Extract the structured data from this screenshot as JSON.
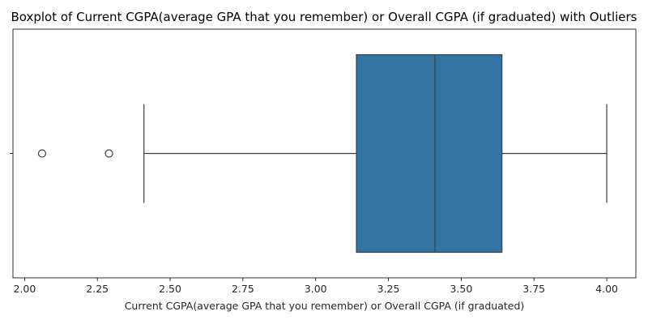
{
  "chart_data": {
    "type": "boxplot",
    "title": "Boxplot of Current CGPA(average GPA that you remember) or Overall CGPA (if graduated) with Outliers",
    "xlabel": "Current CGPA(average GPA that you remember) or Overall CGPA (if graduated)",
    "ylabel": "",
    "xlim": [
      1.96,
      4.1
    ],
    "xticks": [
      "2.00",
      "2.25",
      "2.50",
      "2.75",
      "3.00",
      "3.25",
      "3.50",
      "3.75",
      "4.00"
    ],
    "grid": false,
    "box": {
      "whisker_low": 2.41,
      "q1": 3.14,
      "median": 3.41,
      "q3": 3.64,
      "whisker_high": 4.0
    },
    "outliers": [
      2.06,
      2.29
    ],
    "colors": {
      "box_fill": "#3274a1",
      "line": "#3f3f3f",
      "outlier_edge": "#3f3f3f"
    }
  }
}
